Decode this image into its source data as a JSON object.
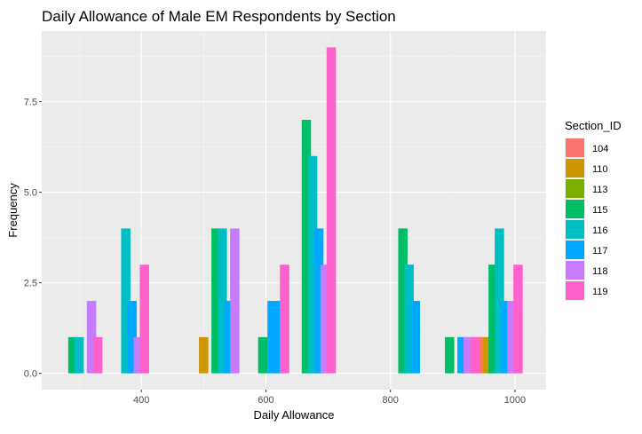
{
  "chart_data": {
    "type": "bar",
    "title": "Daily Allowance of Male EM Respondents by Section",
    "xlabel": "Daily Allowance",
    "ylabel": "Frequency",
    "xlim": [
      240,
      1050
    ],
    "ylim": [
      -0.45,
      9.45
    ],
    "x_ticks": [
      400,
      600,
      800,
      1000
    ],
    "y_ticks": [
      0,
      2.5,
      5,
      7.5
    ],
    "x_tick_labels": [
      "400",
      "600",
      "800",
      "1000"
    ],
    "y_tick_labels": [
      "0.0",
      "2.5",
      "5.0",
      "7.5"
    ],
    "grid": true,
    "legend_position": "right",
    "legend_title": "Section_ID",
    "bar_width": 15,
    "series": [
      {
        "name": "104",
        "color": "#F8766D",
        "points": [
          [
            940,
            1
          ]
        ]
      },
      {
        "name": "110",
        "color": "#CD9600",
        "points": [
          [
            500,
            1
          ],
          [
            955,
            1
          ]
        ]
      },
      {
        "name": "113",
        "color": "#7CAE00",
        "points": []
      },
      {
        "name": "115",
        "color": "#00BE67",
        "points": [
          [
            290,
            1
          ],
          [
            520,
            4
          ],
          [
            595,
            1
          ],
          [
            665,
            7
          ],
          [
            820,
            4
          ],
          [
            895,
            1
          ],
          [
            965,
            3
          ]
        ]
      },
      {
        "name": "116",
        "color": "#00BFC4",
        "points": [
          [
            300,
            1
          ],
          [
            375,
            4
          ],
          [
            530,
            4
          ],
          [
            675,
            6
          ],
          [
            830,
            3
          ],
          [
            975,
            4
          ]
        ]
      },
      {
        "name": "117",
        "color": "#00A9FF",
        "points": [
          [
            385,
            2
          ],
          [
            540,
            2
          ],
          [
            610,
            2
          ],
          [
            620,
            2
          ],
          [
            685,
            4
          ],
          [
            840,
            2
          ],
          [
            915,
            1
          ],
          [
            985,
            2
          ]
        ]
      },
      {
        "name": "118",
        "color": "#C77CFF",
        "points": [
          [
            320,
            2
          ],
          [
            395,
            1
          ],
          [
            550,
            4
          ],
          [
            695,
            3
          ],
          [
            925,
            1
          ],
          [
            995,
            2
          ]
        ]
      },
      {
        "name": "119",
        "color": "#FF61CC",
        "points": [
          [
            330,
            1
          ],
          [
            405,
            3
          ],
          [
            630,
            3
          ],
          [
            705,
            9
          ],
          [
            935,
            1
          ],
          [
            1005,
            3
          ]
        ]
      }
    ]
  }
}
